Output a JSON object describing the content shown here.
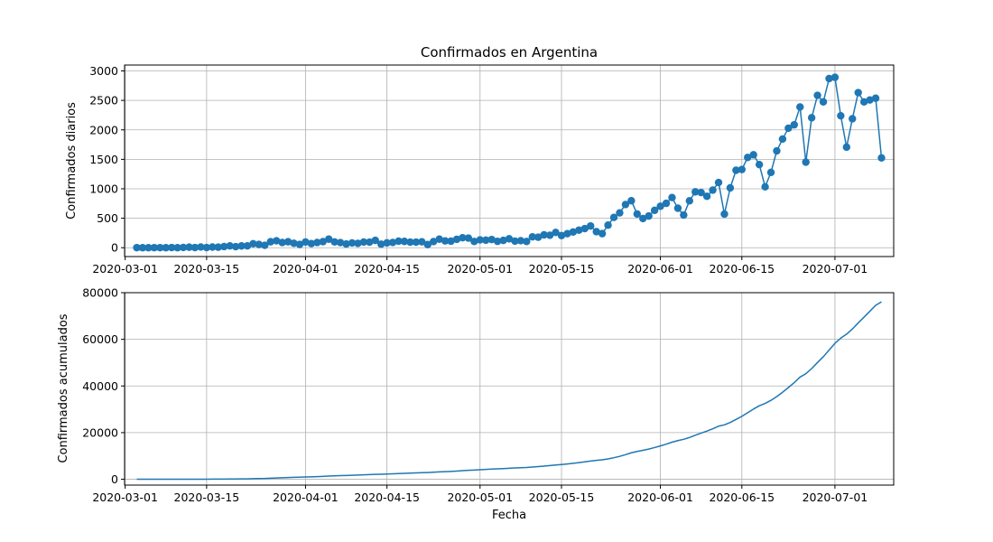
{
  "chart_data": [
    {
      "type": "line",
      "markers": true,
      "title": "Confirmados en Argentina",
      "xlabel": "",
      "ylabel": "Confirmados diarios",
      "x_tick_labels": [
        "2020-03-01",
        "2020-03-15",
        "2020-04-01",
        "2020-04-15",
        "2020-05-01",
        "2020-05-15",
        "2020-06-01",
        "2020-06-15",
        "2020-07-01"
      ],
      "y_tick_labels": [
        "0",
        "500",
        "1000",
        "1500",
        "2000",
        "2500",
        "3000"
      ],
      "ylim": [
        -150,
        3100
      ],
      "grid": true,
      "color": "#1f77b4",
      "series": [
        {
          "start_date": "2020-03-03",
          "values": [
            1,
            0,
            0,
            1,
            1,
            0,
            3,
            0,
            4,
            9,
            3,
            12,
            2,
            11,
            9,
            19,
            31,
            18,
            30,
            31,
            67,
            55,
            41,
            101,
            117,
            88,
            101,
            75,
            55,
            97,
            70,
            88,
            103,
            145,
            98,
            87,
            63,
            81,
            74,
            96,
            95,
            124,
            60,
            82,
            89,
            111,
            107,
            94,
            95,
            100,
            53,
            104,
            145,
            116,
            111,
            143,
            169,
            163,
            106,
            133,
            128,
            139,
            108,
            124,
            151,
            112,
            119,
            106,
            184,
            178,
            218,
            211,
            259,
            206,
            238,
            267,
            298,
            324,
            369,
            272,
            239,
            383,
            514,
            591,
            733,
            797,
            572,
            495,
            538,
            634,
            703,
            753,
            851,
            670,
            554,
            796,
            948,
            936,
            872,
            977,
            1106,
            571,
            1015,
            1314,
            1327,
            1532,
            1577,
            1411,
            1033,
            1278,
            1643,
            1844,
            2028,
            2086,
            2388,
            1452,
            2205,
            2585,
            2475,
            2870,
            2891,
            2239,
            1707,
            2188,
            2632,
            2474,
            2507,
            2537,
            1524
          ]
        }
      ]
    },
    {
      "type": "line",
      "markers": false,
      "title": "",
      "xlabel": "Fecha",
      "ylabel": "Confirmados acumulados",
      "x_tick_labels": [
        "2020-03-01",
        "2020-03-15",
        "2020-04-01",
        "2020-04-15",
        "2020-05-01",
        "2020-05-15",
        "2020-06-01",
        "2020-06-15",
        "2020-07-01"
      ],
      "y_tick_labels": [
        "0",
        "20000",
        "40000",
        "60000",
        "80000"
      ],
      "ylim": [
        -2500,
        80000
      ],
      "grid": true,
      "color": "#1f77b4",
      "series": [
        {
          "start_date": "2020-03-03",
          "cumulative_of_daily": true
        }
      ]
    }
  ]
}
